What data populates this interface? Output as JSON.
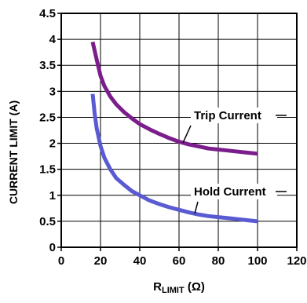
{
  "chart_data": {
    "type": "line",
    "title": "",
    "xlabel_main": "R",
    "xlabel_sub": "LIMIT",
    "xlabel_unit": " (Ω)",
    "ylabel": "CURRENT LIMIT (A)",
    "xlim": [
      0,
      120
    ],
    "ylim": [
      0,
      4.5
    ],
    "x_ticks": [
      0,
      20,
      40,
      60,
      80,
      100,
      120
    ],
    "y_ticks": [
      0,
      0.5,
      1,
      1.5,
      2,
      2.5,
      3,
      3.5,
      4,
      4.5
    ],
    "x_tick_labels": [
      "0",
      "20",
      "40",
      "60",
      "80",
      "100",
      "120"
    ],
    "y_tick_labels": [
      "0",
      "0.5",
      "1",
      "1.5",
      "2",
      "2.5",
      "3",
      "3.5",
      "4",
      "4.5"
    ],
    "grid": true,
    "legend": "none",
    "series": [
      {
        "name": "Trip Current",
        "color": "#7b1e8c",
        "points": [
          [
            16,
            3.95
          ],
          [
            18,
            3.62
          ],
          [
            20,
            3.3
          ],
          [
            22,
            3.1
          ],
          [
            25,
            2.9
          ],
          [
            28,
            2.75
          ],
          [
            32,
            2.6
          ],
          [
            36,
            2.48
          ],
          [
            40,
            2.37
          ],
          [
            45,
            2.27
          ],
          [
            50,
            2.18
          ],
          [
            55,
            2.1
          ],
          [
            60,
            2.03
          ],
          [
            65,
            1.98
          ],
          [
            70,
            1.94
          ],
          [
            75,
            1.9
          ],
          [
            80,
            1.88
          ],
          [
            85,
            1.86
          ],
          [
            90,
            1.84
          ],
          [
            95,
            1.82
          ],
          [
            100,
            1.8
          ]
        ]
      },
      {
        "name": "Hold Current",
        "color": "#5a5ad2",
        "points": [
          [
            16,
            2.95
          ],
          [
            17,
            2.58
          ],
          [
            18,
            2.3
          ],
          [
            20,
            1.95
          ],
          [
            22,
            1.72
          ],
          [
            25,
            1.5
          ],
          [
            28,
            1.33
          ],
          [
            32,
            1.2
          ],
          [
            36,
            1.08
          ],
          [
            40,
            1.0
          ],
          [
            45,
            0.9
          ],
          [
            50,
            0.83
          ],
          [
            55,
            0.77
          ],
          [
            60,
            0.72
          ],
          [
            65,
            0.67
          ],
          [
            70,
            0.63
          ],
          [
            75,
            0.6
          ],
          [
            80,
            0.58
          ],
          [
            85,
            0.56
          ],
          [
            90,
            0.54
          ],
          [
            95,
            0.52
          ],
          [
            100,
            0.5
          ]
        ]
      }
    ],
    "annotations": [
      {
        "series": 0,
        "text": "Trip Current",
        "at_x": 62
      },
      {
        "series": 1,
        "text": "Hold Current",
        "at_x": 68
      }
    ]
  }
}
